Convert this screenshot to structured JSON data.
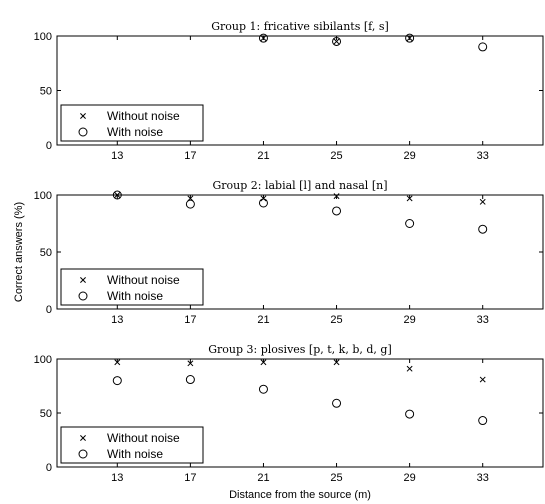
{
  "chart_data": {
    "type": "scatter",
    "xlabel": "Distance from the source (m)",
    "ylabel": "Correct answers (%)",
    "x_ticks": [
      13,
      17,
      21,
      25,
      29,
      33
    ],
    "xlim": [
      9.7,
      36.3
    ],
    "ylim": [
      0,
      100
    ],
    "y_ticks": [
      0,
      50,
      100
    ],
    "grid": false,
    "legend_position": "bottom-left",
    "legend": [
      "Without noise",
      "With noise"
    ],
    "panels": [
      {
        "title": "Group 1: fricative sibilants [f, s]",
        "series": [
          {
            "name": "Without noise",
            "marker": "x",
            "x": [
              21,
              25,
              29
            ],
            "y": [
              98,
              95,
              98
            ]
          },
          {
            "name": "With noise",
            "marker": "o",
            "x": [
              21,
              25,
              29,
              33
            ],
            "y": [
              98,
              95,
              98,
              90
            ]
          }
        ]
      },
      {
        "title": "Group 2: labial [l] and nasal [n]",
        "series": [
          {
            "name": "Without noise",
            "marker": "x",
            "x": [
              13,
              17,
              21,
              25,
              29,
              33
            ],
            "y": [
              100,
              97,
              97,
              99,
              97,
              94
            ]
          },
          {
            "name": "With noise",
            "marker": "o",
            "x": [
              13,
              17,
              21,
              25,
              29,
              33
            ],
            "y": [
              100,
              92,
              93,
              86,
              75,
              70
            ]
          }
        ]
      },
      {
        "title": "Group 3: plosives [p, t, k, b, d, g]",
        "series": [
          {
            "name": "Without noise",
            "marker": "x",
            "x": [
              13,
              17,
              21,
              25,
              29,
              33
            ],
            "y": [
              97,
              96,
              97,
              97,
              91,
              81
            ]
          },
          {
            "name": "With noise",
            "marker": "o",
            "x": [
              13,
              17,
              21,
              25,
              29,
              33
            ],
            "y": [
              80,
              81,
              72,
              59,
              49,
              43
            ]
          }
        ]
      }
    ]
  }
}
